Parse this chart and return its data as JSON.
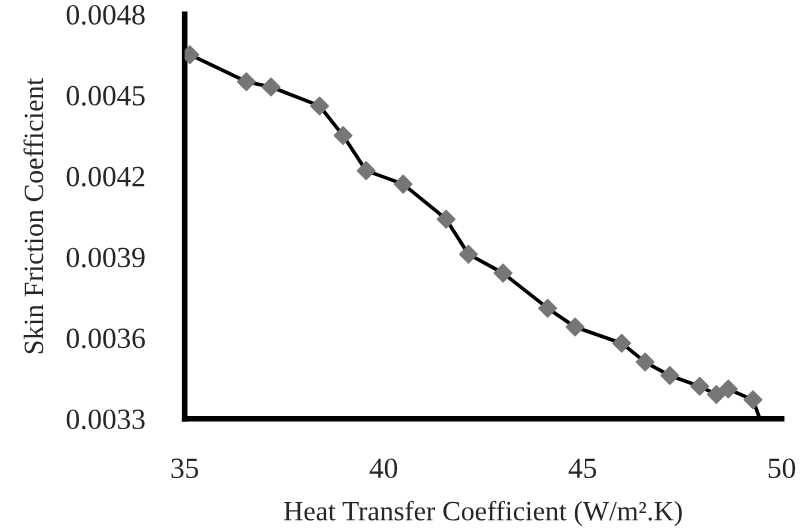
{
  "chart_data": {
    "type": "line",
    "xlabel": "Heat Transfer Coefficient (W/m².K)",
    "ylabel": "Skin Friction Coefficient",
    "x": [
      35.13,
      36.55,
      37.17,
      38.39,
      38.98,
      39.56,
      40.49,
      41.57,
      42.13,
      43.0,
      44.12,
      44.81,
      45.98,
      46.57,
      47.19,
      47.94,
      48.36,
      48.66,
      49.28,
      49.45
    ],
    "values": [
      0.00465,
      0.00455,
      0.00453,
      0.00446,
      0.00435,
      0.00422,
      0.00417,
      0.00404,
      0.00391,
      0.00384,
      0.00371,
      0.00364,
      0.00358,
      0.00351,
      0.00346,
      0.00342,
      0.00339,
      0.00341,
      0.00337,
      0.0033
    ],
    "color": "#000000",
    "colors": [
      "#767676",
      "#767676",
      "#767676",
      "#767676",
      "#767676",
      "#767676",
      "#767676",
      "#767676",
      "#767676",
      "#767676",
      "#767676",
      "#767676",
      "#767676",
      "#767676",
      "#767676",
      "#767676",
      "#767676",
      "#767676",
      "#767676",
      null
    ],
    "marker": "diamond",
    "line_style": "solid",
    "xlim": [
      35,
      50
    ],
    "xticks": [
      35,
      40,
      45,
      50
    ],
    "ylim": [
      0.0033,
      0.0048
    ],
    "yticks": [
      0.0033,
      0.0036,
      0.0039,
      0.0042,
      0.0045,
      0.0048
    ],
    "grid": false,
    "legend": false
  }
}
